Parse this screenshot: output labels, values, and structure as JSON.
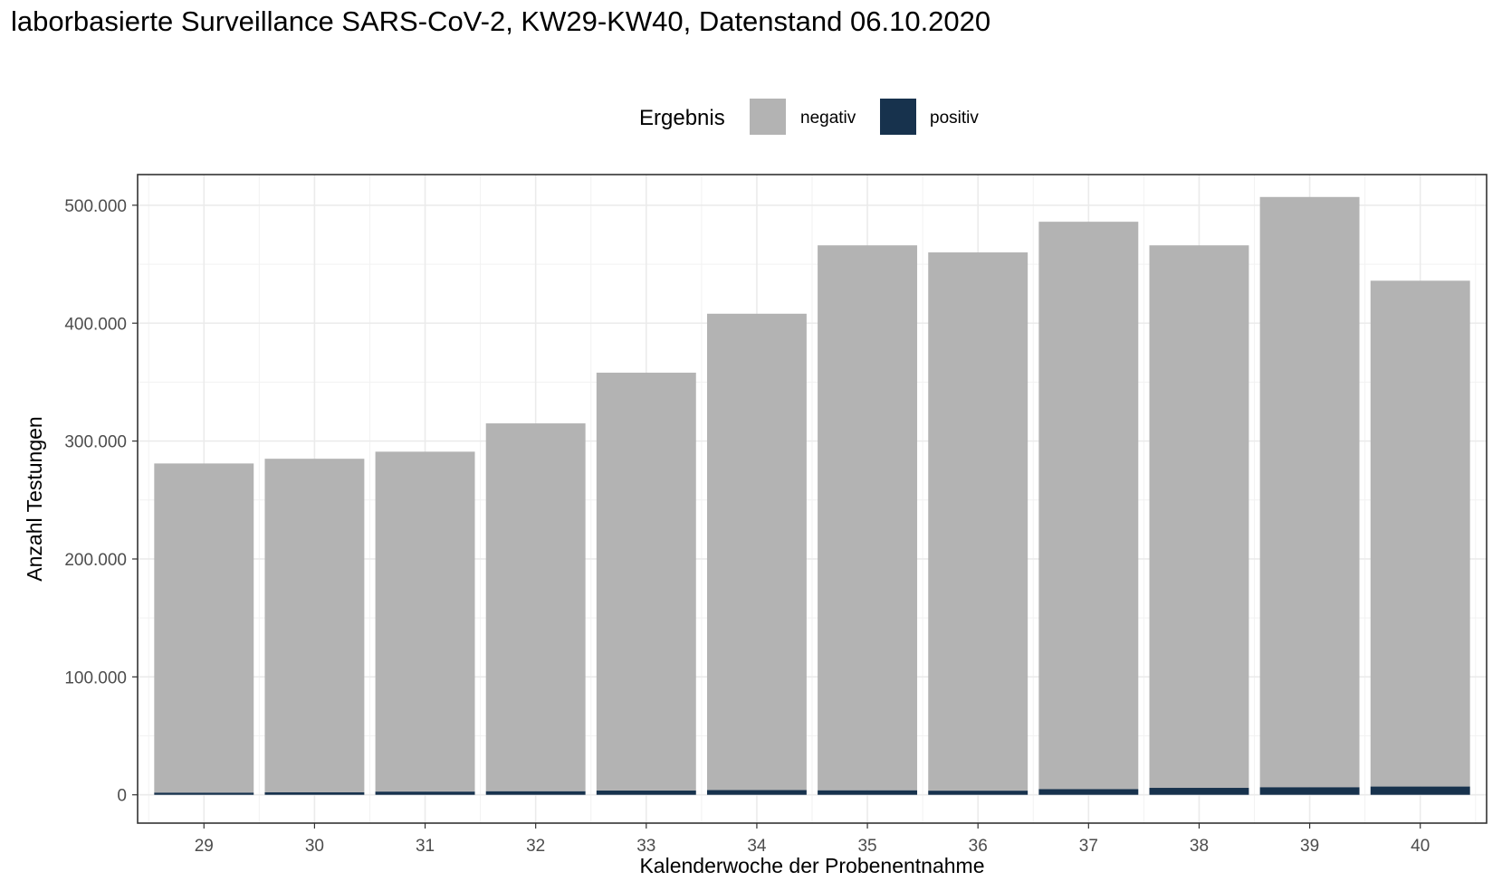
{
  "title": "laborbasierte Surveillance SARS-CoV-2, KW29-KW40, Datenstand 06.10.2020",
  "chart_data": {
    "type": "bar",
    "stacked": true,
    "categories": [
      "29",
      "30",
      "31",
      "32",
      "33",
      "34",
      "35",
      "36",
      "37",
      "38",
      "39",
      "40"
    ],
    "series": [
      {
        "name": "positiv",
        "color": "#17324d",
        "values": [
          1800,
          2100,
          2700,
          3000,
          3600,
          4000,
          3800,
          3500,
          4800,
          5900,
          6400,
          7000
        ]
      },
      {
        "name": "negativ",
        "color": "#b3b3b3",
        "values": [
          279200,
          282900,
          288300,
          312000,
          354400,
          404000,
          462200,
          456500,
          481200,
          460100,
          500600,
          429000
        ]
      }
    ],
    "totals": [
      281000,
      285000,
      291000,
      315000,
      358000,
      408000,
      466000,
      460000,
      486000,
      466000,
      507000,
      436000
    ],
    "xlabel": "Kalenderwoche der Probenentnahme",
    "ylabel": "Anzahl Testungen",
    "ylim": [
      -24000,
      526000
    ],
    "yticks": [
      0,
      100000,
      200000,
      300000,
      400000,
      500000
    ],
    "ytick_labels": [
      "0",
      "100.000",
      "200.000",
      "300.000",
      "400.000",
      "500.000"
    ],
    "legend": {
      "title": "Ergebnis",
      "placement": "top",
      "entries": [
        "negativ",
        "positiv"
      ]
    },
    "grid": true
  }
}
